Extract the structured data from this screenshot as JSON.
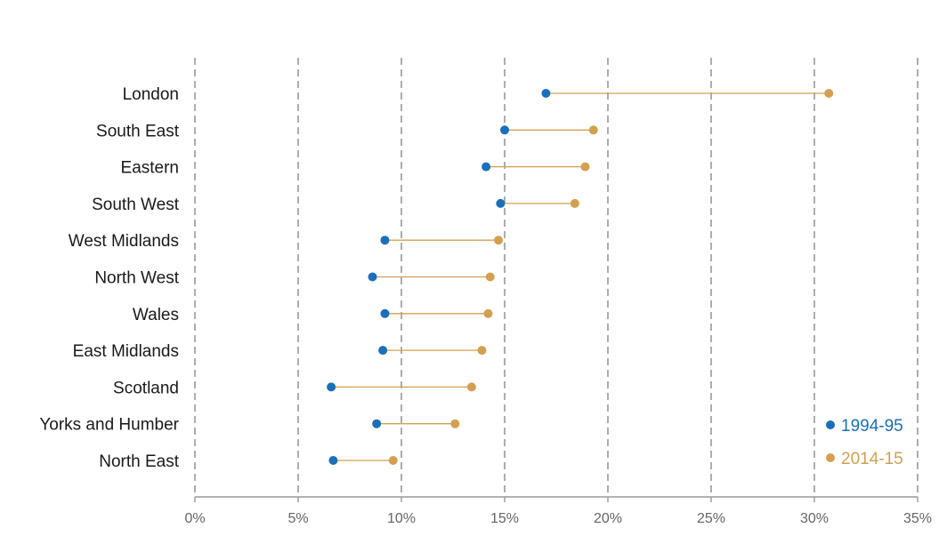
{
  "chart_data": {
    "type": "dumbbell",
    "title": "",
    "xlabel": "",
    "ylabel": "",
    "xlim": [
      0,
      35
    ],
    "x_ticks": [
      0,
      5,
      10,
      15,
      20,
      25,
      30,
      35
    ],
    "x_tick_labels": [
      "0%",
      "5%",
      "10%",
      "15%",
      "20%",
      "25%",
      "30%",
      "35%"
    ],
    "grid": "vertical-dashed",
    "legend_position": "bottom-right",
    "categories": [
      "London",
      "South East",
      "Eastern",
      "South West",
      "West Midlands",
      "North West",
      "Wales",
      "East Midlands",
      "Scotland",
      "Yorks and Humber",
      "North East"
    ],
    "series": [
      {
        "name": "1994-95",
        "color": "#1a6fba",
        "values": [
          17.0,
          15.0,
          14.1,
          14.8,
          9.2,
          8.6,
          9.2,
          9.1,
          6.6,
          8.8,
          6.7
        ]
      },
      {
        "name": "2014-15",
        "color": "#d4a050",
        "values": [
          30.7,
          19.3,
          18.9,
          18.4,
          14.7,
          14.3,
          14.2,
          13.9,
          13.4,
          12.6,
          9.6
        ]
      }
    ],
    "connector_color": "#d4a050"
  }
}
